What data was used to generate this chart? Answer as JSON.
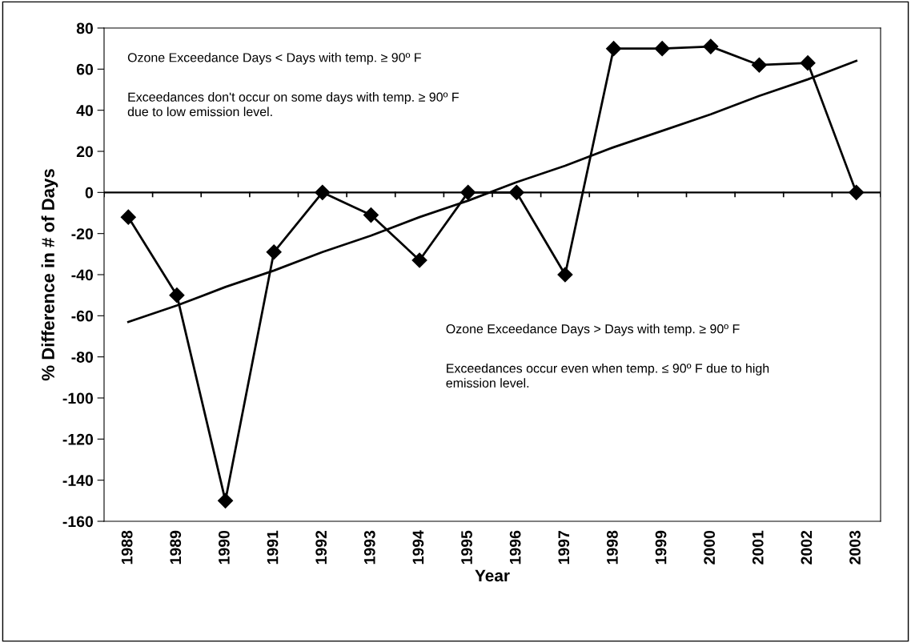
{
  "chart_data": {
    "type": "line",
    "xlabel": "Year",
    "ylabel": "% Difference in # of Days",
    "categories": [
      "1988",
      "1989",
      "1990",
      "1991",
      "1992",
      "1993",
      "1994",
      "1995",
      "1996",
      "1997",
      "1998",
      "1999",
      "2000",
      "2001",
      "2002",
      "2003"
    ],
    "series": [
      {
        "color": "#000000",
        "marker": "diamond",
        "values": [
          -12,
          -50,
          -150,
          -29,
          0,
          -11,
          -33,
          0,
          0,
          -40,
          70,
          70,
          71,
          62,
          63,
          0
        ]
      },
      {
        "color": "#000000",
        "marker": "none",
        "values": [
          -63,
          -55,
          -46,
          -38,
          -29,
          -21,
          -12,
          -4,
          5,
          13,
          22,
          30,
          38,
          47,
          55,
          64
        ]
      }
    ],
    "ylim": [
      -160,
      80
    ],
    "yticks": [
      -160,
      -140,
      -120,
      -100,
      -80,
      -60,
      -40,
      -20,
      0,
      20,
      40,
      60,
      80
    ],
    "ref_lines": [
      {
        "axis": "y",
        "value": 0,
        "color": "#000000"
      }
    ],
    "grid": false,
    "legend": false,
    "annotations": [
      "Ozone Exceedance Days < Days with temp. ≥ 90º F",
      "Exceedances don't occur on some days with temp. ≥ 90º F\ndue to low emission level.",
      "Ozone Exceedance Days > Days with temp. ≥ 90º F",
      "Exceedances occur even when temp. ≤ 90º F due to high\nemission level."
    ]
  }
}
